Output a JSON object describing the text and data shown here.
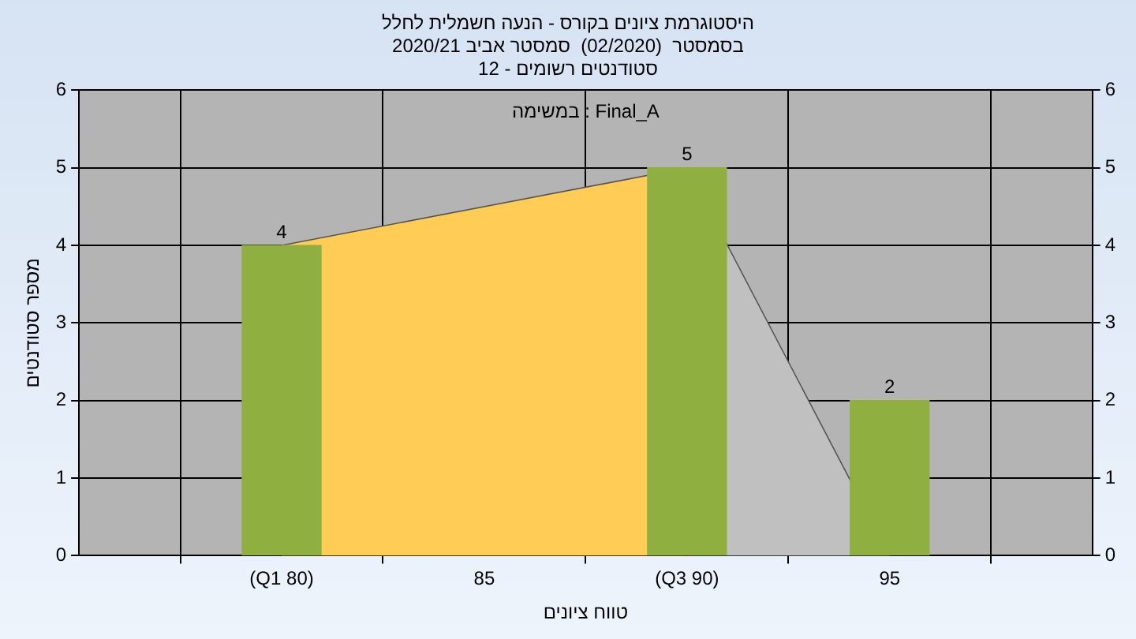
{
  "chart_data": {
    "type": "bar",
    "title": "היסטוגרמת ציונים בקורס - הנעה חשמלית לחלל",
    "subtitle": "בסמסטר  (02/2020)  סמסטר אביב 2020/21\nסטודנטים רשומים - 12",
    "xlabel": "טווח ציונים",
    "ylabel": "מספר סטודנטים",
    "annotations": [
      "במשימה : Final_A"
    ],
    "series": [
      {
        "type": "area",
        "color": "#ffcc55",
        "x": [
          80,
          90
        ],
        "values": [
          4,
          5
        ]
      },
      {
        "type": "area",
        "color": "#c0c0c0",
        "x": [
          90,
          95
        ],
        "values": [
          5,
          0
        ]
      },
      {
        "color": "#8fb040",
        "x": [
          80,
          90,
          95
        ],
        "values": [
          4,
          5,
          2
        ],
        "value_labels": [
          "4",
          "5",
          "2"
        ]
      }
    ],
    "xlim": [
      75,
      100
    ],
    "xticks": [
      {
        "value": 80,
        "label": "(Q1 80)"
      },
      85,
      {
        "value": 90,
        "label": "(Q3 90)"
      },
      95
    ],
    "ylim": [
      0,
      6
    ],
    "yticks": [
      0,
      1,
      2,
      3,
      4,
      5,
      6
    ],
    "y2lim": [
      0,
      6
    ],
    "y2ticks": [
      0,
      1,
      2,
      3,
      4,
      5,
      6
    ],
    "grid": true
  }
}
